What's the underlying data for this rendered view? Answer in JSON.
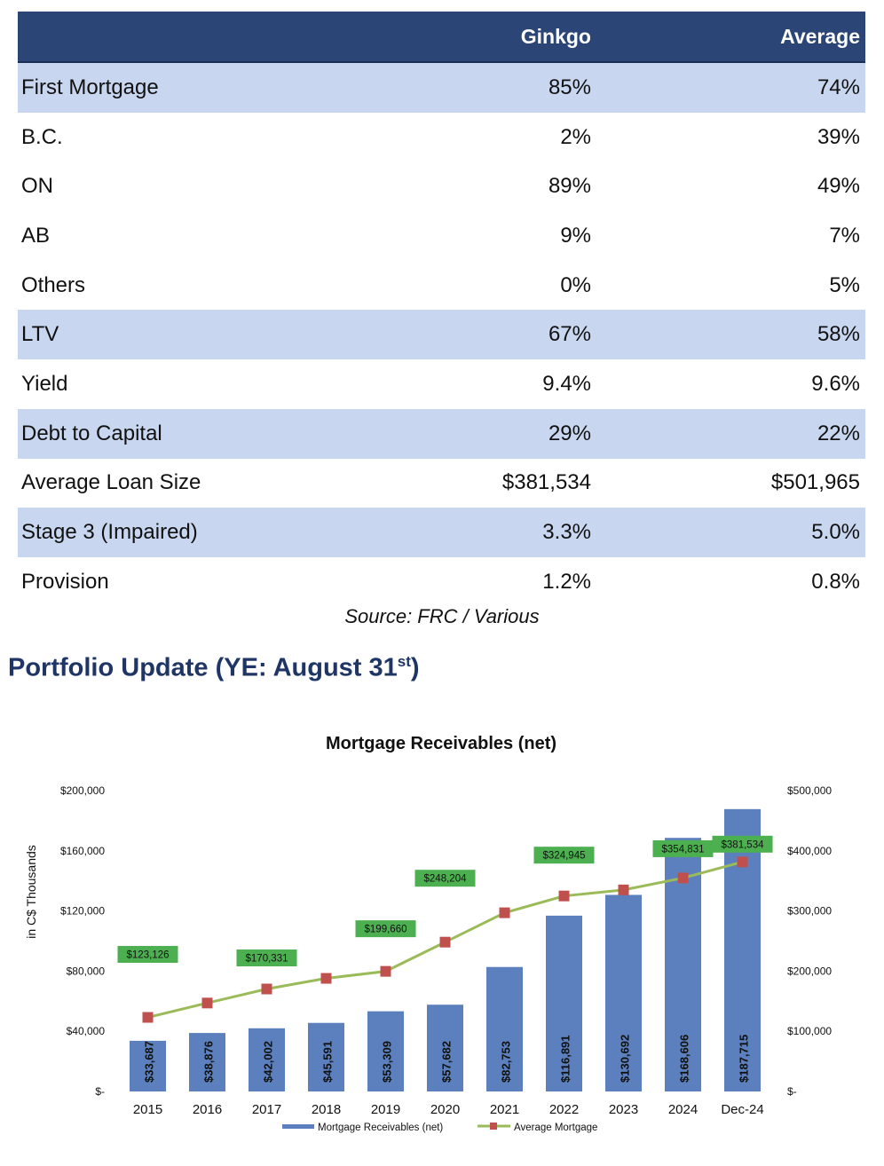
{
  "table": {
    "headers": [
      "",
      "Ginkgo",
      "Average"
    ],
    "rows": [
      {
        "label": "First Mortgage",
        "ginkgo": "85%",
        "average": "74%",
        "shade": true
      },
      {
        "label": "B.C.",
        "ginkgo": "2%",
        "average": "39%",
        "shade": false
      },
      {
        "label": "ON",
        "ginkgo": "89%",
        "average": "49%",
        "shade": false
      },
      {
        "label": "AB",
        "ginkgo": "9%",
        "average": "7%",
        "shade": false
      },
      {
        "label": "Others",
        "ginkgo": "0%",
        "average": "5%",
        "shade": false
      },
      {
        "label": "LTV",
        "ginkgo": "67%",
        "average": "58%",
        "shade": true
      },
      {
        "label": "Yield",
        "ginkgo": "9.4%",
        "average": "9.6%",
        "shade": false
      },
      {
        "label": "Debt to Capital",
        "ginkgo": "29%",
        "average": "22%",
        "shade": true
      },
      {
        "label": "Average Loan Size",
        "ginkgo": "$381,534",
        "average": "$501,965",
        "shade": false
      },
      {
        "label": "Stage 3 (Impaired)",
        "ginkgo": "3.3%",
        "average": "5.0%",
        "shade": true
      },
      {
        "label": "Provision",
        "ginkgo": "1.2%",
        "average": "0.8%",
        "shade": false
      }
    ]
  },
  "source": "Source: FRC / Various",
  "section": {
    "title": "Portfolio Update (YE: August 31",
    "title_sup": "st",
    "title_end": ")"
  },
  "colors": {
    "header_bg": "#2a4576",
    "row_shade": "#c8d7ef",
    "bar": "#5b80bd",
    "line": "#9bbb59",
    "marker": "#c0504d",
    "label_bg": "#4caf50"
  },
  "chart_data": {
    "type": "bar",
    "title": "Mortgage Receivables (net)",
    "ylabel": "in C$ Thousands",
    "categories": [
      "2015",
      "2016",
      "2017",
      "2018",
      "2019",
      "2020",
      "2021",
      "2022",
      "2023",
      "2024",
      "Dec-24"
    ],
    "left_axis": {
      "ylim": [
        0,
        200000
      ],
      "ticks": [
        0,
        40000,
        80000,
        120000,
        160000,
        200000
      ],
      "tick_labels": [
        "$-",
        "$40,000",
        "$80,000",
        "$120,000",
        "$160,000",
        "$200,000"
      ]
    },
    "right_axis": {
      "ylim": [
        0,
        500000
      ],
      "ticks": [
        0,
        100000,
        200000,
        300000,
        400000,
        500000
      ],
      "tick_labels": [
        "$-",
        "$100,000",
        "$200,000",
        "$300,000",
        "$400,000",
        "$500,000"
      ]
    },
    "series": [
      {
        "name": "Mortgage Receivables (net)",
        "type": "bar",
        "axis": "left",
        "values": [
          33687,
          38876,
          42002,
          45591,
          53309,
          57682,
          82753,
          116891,
          130692,
          168606,
          187715
        ],
        "labels": [
          "$33,687",
          "$38,876",
          "$42,002",
          "$45,591",
          "$53,309",
          "$57,682",
          "$82,753",
          "$116,891",
          "$130,692",
          "$168,606",
          "$187,715"
        ]
      },
      {
        "name": "Average Mortgage",
        "type": "line",
        "axis": "right",
        "values": [
          123126,
          147000,
          170331,
          188000,
          199660,
          248204,
          297000,
          324945,
          335000,
          354831,
          381534
        ],
        "labels": [
          "$123,126",
          "",
          "$170,331",
          "",
          "$199,660",
          "$248,204",
          "",
          "$324,945",
          "",
          "$354,831",
          "$381,534"
        ]
      }
    ],
    "legend": "bottom"
  }
}
